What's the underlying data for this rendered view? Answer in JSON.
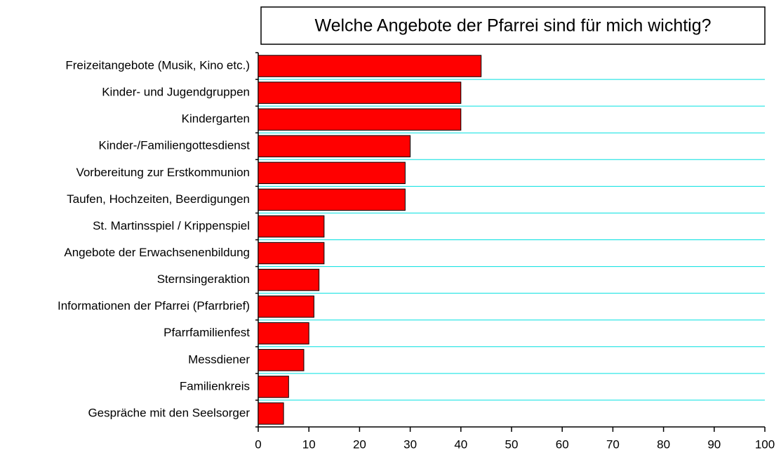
{
  "chart_data": {
    "type": "barh",
    "title": "Welche Angebote der Pfarrei sind für mich wichtig?",
    "categories": [
      "Freizeitangebote (Musik, Kino etc.)",
      "Kinder- und Jugendgruppen",
      "Kindergarten",
      "Kinder-/Familiengottesdienst",
      "Vorbereitung zur Erstkommunion",
      "Taufen, Hochzeiten, Beerdigungen",
      "St. Martinsspiel / Krippenspiel",
      "Angebote der Erwachsenenbildung",
      "Sternsingeraktion",
      "Informationen der Pfarrei (Pfarrbrief)",
      "Pfarrfamilienfest",
      "Messdiener",
      "Familienkreis",
      "Gespräche mit den Seelsorger"
    ],
    "values": [
      44,
      40,
      40,
      30,
      29,
      29,
      13,
      13,
      12,
      11,
      10,
      9,
      6,
      5
    ],
    "color": "#ff0000",
    "xlim": [
      0,
      100
    ],
    "xticks": [
      0,
      10,
      20,
      30,
      40,
      50,
      60,
      70,
      80,
      90,
      100
    ],
    "grid": true,
    "grid_color": "#00e0e0"
  }
}
